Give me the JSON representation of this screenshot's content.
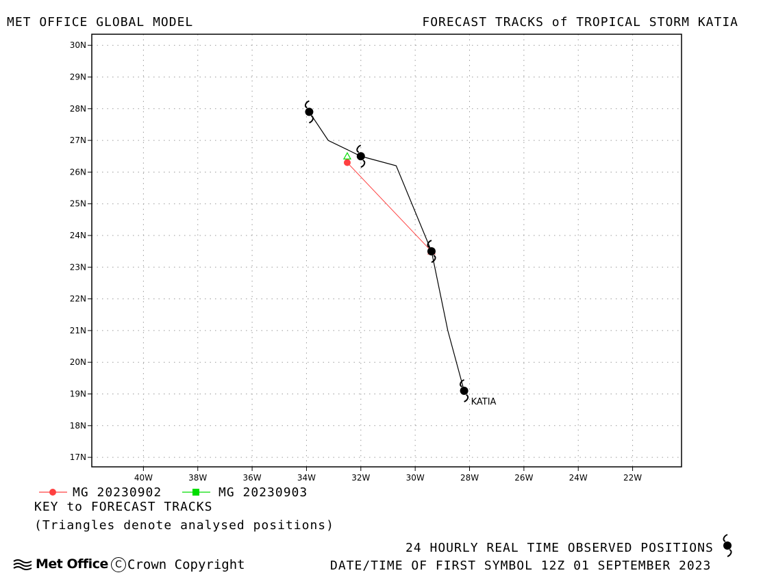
{
  "header": {
    "left_title": "MET OFFICE GLOBAL MODEL",
    "right_title": "FORECAST TRACKS of TROPICAL STORM KATIA"
  },
  "chart_data": {
    "type": "line",
    "title": "FORECAST TRACKS of TROPICAL STORM KATIA",
    "xlim": [
      -41.9,
      -20.2
    ],
    "ylim": [
      16.7,
      30.35
    ],
    "grid": true,
    "x_ticks": [
      -40,
      -38,
      -36,
      -34,
      -32,
      -30,
      -28,
      -26,
      -24,
      -22
    ],
    "x_tick_labels": [
      "40W",
      "38W",
      "36W",
      "34W",
      "32W",
      "30W",
      "28W",
      "26W",
      "24W",
      "22W"
    ],
    "y_ticks": [
      17,
      18,
      19,
      20,
      21,
      22,
      23,
      24,
      25,
      26,
      27,
      28,
      29,
      30
    ],
    "y_tick_labels": [
      "17N",
      "18N",
      "19N",
      "20N",
      "21N",
      "22N",
      "23N",
      "24N",
      "25N",
      "26N",
      "27N",
      "28N",
      "29N",
      "30N"
    ],
    "observed_track": {
      "points": [
        [
          -28.2,
          19.1
        ],
        [
          -28.8,
          21.0
        ],
        [
          -29.4,
          23.5
        ],
        [
          -30.7,
          26.2
        ],
        [
          -32.0,
          26.5
        ],
        [
          -33.2,
          27.0
        ],
        [
          -33.9,
          27.9
        ]
      ],
      "symbol_points": [
        [
          -28.2,
          19.1
        ],
        [
          -29.4,
          23.5
        ],
        [
          -32.0,
          26.5
        ],
        [
          -33.9,
          27.9
        ]
      ],
      "color": "#000000"
    },
    "storm_label": {
      "text": "KATIA",
      "x": -28.2,
      "y": 19.1
    },
    "series": [
      {
        "name": "MG 20230902",
        "color": "#ff4040",
        "marker": "circle",
        "points": [
          [
            -29.4,
            23.5
          ],
          [
            -32.5,
            26.3
          ]
        ],
        "analysed": [
          -29.4,
          23.5
        ]
      },
      {
        "name": "MG 20230903",
        "color": "#00dd00",
        "marker": "square",
        "points": [],
        "analysed": [
          -32.5,
          26.5
        ]
      }
    ]
  },
  "legend": {
    "key_title": "KEY to FORECAST TRACKS",
    "key_note": "(Triangles denote analysed positions)"
  },
  "footer": {
    "observed_label": "24 HOURLY REAL TIME OBSERVED POSITIONS",
    "datetime_label": "DATE/TIME OF FIRST SYMBOL 12Z 01 SEPTEMBER 2023",
    "logo_text": "Met Office",
    "copyright_symbol": "C",
    "copyright_text": "Crown Copyright"
  },
  "colors": {
    "frame": "#000000",
    "grid": "#999999",
    "background": "#ffffff"
  }
}
